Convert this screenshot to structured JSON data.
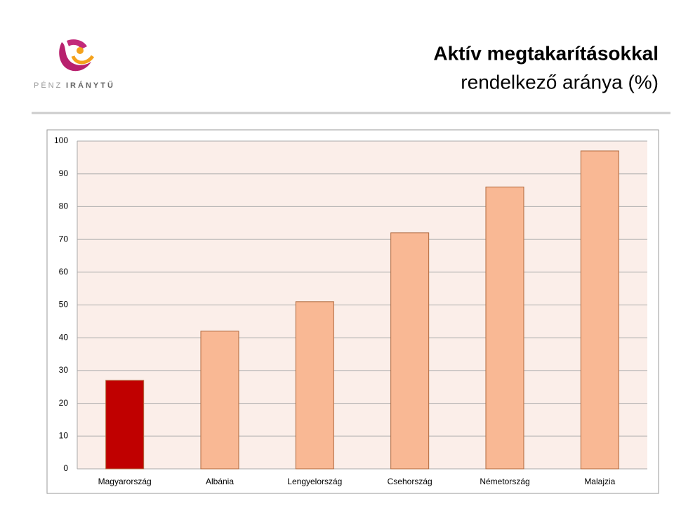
{
  "logo": [
    "PÉNZ",
    "IRÁNYTŰ"
  ],
  "chart_data": {
    "type": "bar",
    "title": [
      "Aktív megtakarításokkal",
      "rendelkező aránya (%)"
    ],
    "categories": [
      "Magyarország",
      "Albánia",
      "Lengyelország",
      "Csehország",
      "Németország",
      "Malajzia"
    ],
    "values": [
      27,
      42,
      51,
      72,
      86,
      97
    ],
    "colors": [
      "#c00000",
      "#f9b894",
      "#f9b894",
      "#f9b894",
      "#f9b894",
      "#f9b894"
    ],
    "ylim": [
      0,
      100
    ],
    "yticks": [
      0,
      10,
      20,
      30,
      40,
      50,
      60,
      70,
      80,
      90,
      100
    ],
    "grid": true
  }
}
